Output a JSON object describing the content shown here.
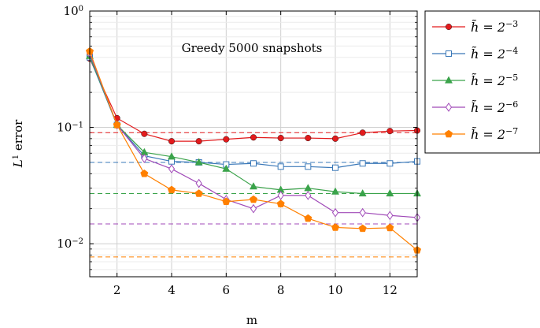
{
  "chart_data": {
    "type": "line",
    "title": "",
    "annotation": "Greedy 5000 snapshots",
    "xlabel": "m",
    "ylabel": {
      "base": "L",
      "sup": "1",
      "rest": " error"
    },
    "xlim": [
      1,
      13
    ],
    "ylim": [
      0.0052,
      1.0
    ],
    "yscale": "log",
    "x_ticks": [
      2,
      4,
      6,
      8,
      10,
      12
    ],
    "y_ticks": [
      {
        "value": 0.01,
        "base": "10",
        "exp": "−2"
      },
      {
        "value": 0.1,
        "base": "10",
        "exp": "−1"
      },
      {
        "value": 1.0,
        "base": "10",
        "exp": "0"
      }
    ],
    "grid": true,
    "legend_position": "outside-right",
    "x": [
      1,
      2,
      3,
      4,
      5,
      6,
      7,
      8,
      9,
      10,
      11,
      12,
      13
    ],
    "series": [
      {
        "name_base": "h̃ = 2",
        "name_exp": "−3",
        "color": "#e31a1c",
        "marker": "circle",
        "values": [
          0.39,
          0.12,
          0.088,
          0.076,
          0.076,
          0.079,
          0.082,
          0.081,
          0.081,
          0.08,
          0.09,
          0.093,
          0.094
        ],
        "reference": 0.09
      },
      {
        "name_base": "h̃ = 2",
        "name_exp": "−4",
        "color": "#3a78b8",
        "marker": "square",
        "values": [
          0.4,
          0.105,
          0.057,
          0.051,
          0.05,
          0.048,
          0.049,
          0.046,
          0.046,
          0.045,
          0.049,
          0.049,
          0.051
        ],
        "reference": 0.05
      },
      {
        "name_base": "h̃ = 2",
        "name_exp": "−5",
        "color": "#3aa34a",
        "marker": "triangle",
        "values": [
          0.41,
          0.105,
          0.061,
          0.056,
          0.05,
          0.044,
          0.031,
          0.029,
          0.03,
          0.028,
          0.027,
          0.027,
          0.027
        ],
        "reference": 0.027
      },
      {
        "name_base": "h̃ = 2",
        "name_exp": "−6",
        "color": "#a04ab8",
        "marker": "diamond",
        "values": [
          0.43,
          0.105,
          0.054,
          0.044,
          0.033,
          0.024,
          0.02,
          0.026,
          0.026,
          0.0185,
          0.0185,
          0.0175,
          0.0168
        ],
        "reference": 0.0148
      },
      {
        "name_base": "h̃ = 2",
        "name_exp": "−7",
        "color": "#ff8000",
        "marker": "pentagon",
        "values": [
          0.45,
          0.105,
          0.04,
          0.029,
          0.027,
          0.023,
          0.024,
          0.022,
          0.0165,
          0.0138,
          0.0135,
          0.0137,
          0.0088
        ],
        "reference": 0.0077
      }
    ]
  }
}
